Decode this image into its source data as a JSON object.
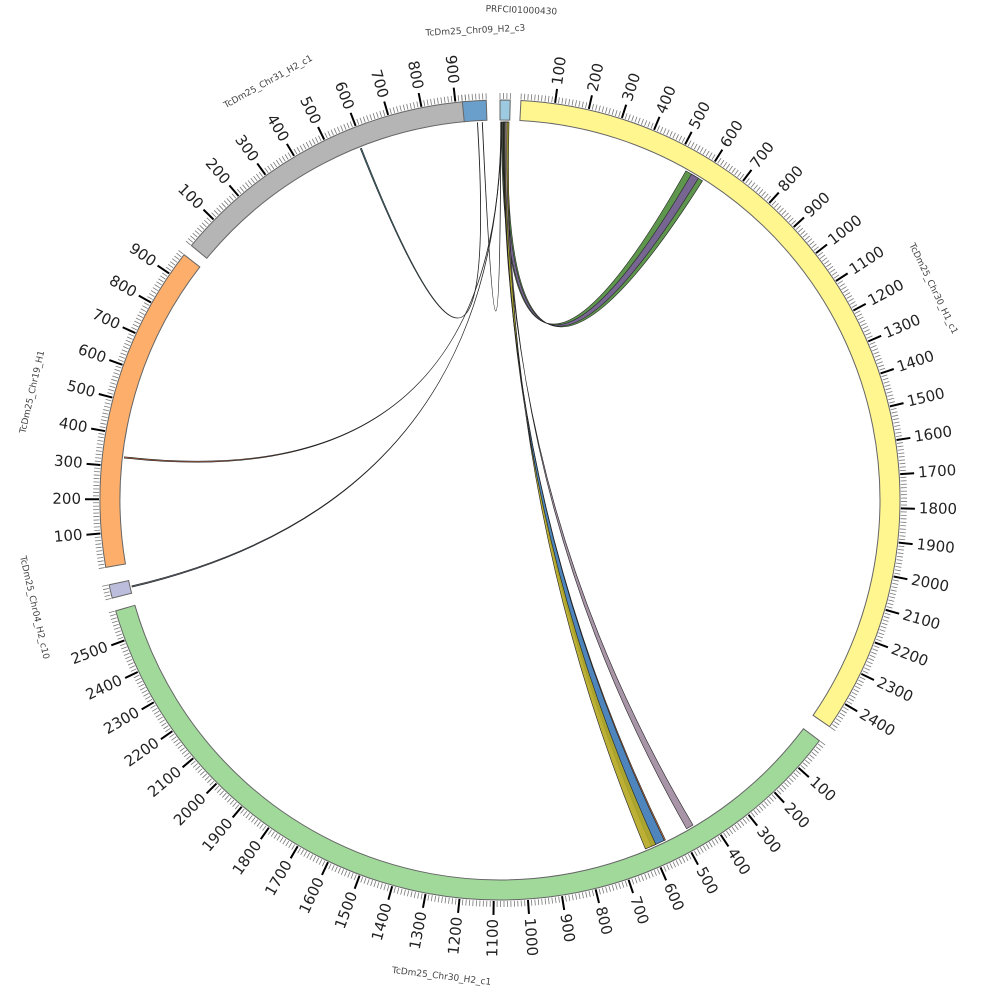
{
  "chromosomes": [
    {
      "name": "PRFCI01000430",
      "length": 30,
      "color": "#9ecae1"
    },
    {
      "name": "TcDm25_Chr30_H1_c1",
      "length": 2480,
      "color": "#fff68f"
    },
    {
      "name": "TcDm25_Chr30_H2_c1",
      "length": 2590,
      "color": "#a1d99b"
    },
    {
      "name": "TcDm25_Chr04_H2_c10",
      "length": 40,
      "color": "#bcbddc"
    },
    {
      "name": "TcDm25_Chr19_H1",
      "length": 970,
      "color": "#fdae6b"
    },
    {
      "name": "TcDm25_Chr31_H2_c1",
      "length": 930,
      "color": "#b5b5b5"
    },
    {
      "name": "TcDm25_Chr09_H2_c3",
      "length": 70,
      "color": "#6a9fcb"
    }
  ],
  "links": [
    {
      "source": "PRFCI01000430",
      "source_range": [
        5,
        25
      ],
      "target": "TcDm25_Chr30_H1_c1",
      "target_range": [
        540,
        600
      ],
      "color": "#4d8b3a"
    },
    {
      "source": "PRFCI01000430",
      "source_range": [
        8,
        20
      ],
      "target": "TcDm25_Chr30_H1_c1",
      "target_range": [
        560,
        585
      ],
      "color": "#7a5f9a"
    },
    {
      "source": "PRFCI01000430",
      "source_range": [
        12,
        26
      ],
      "target": "TcDm25_Chr30_H2_c1",
      "target_range": [
        555,
        600
      ],
      "color": "#3a78b5"
    },
    {
      "source": "PRFCI01000430",
      "source_range": [
        14,
        28
      ],
      "target": "TcDm25_Chr30_H2_c1",
      "target_range": [
        585,
        620
      ],
      "color": "#b5a820"
    },
    {
      "source": "PRFCI01000430",
      "source_range": [
        10,
        12
      ],
      "target": "TcDm25_Chr30_H2_c1",
      "target_range": [
        552,
        556
      ],
      "color": "#d9773a"
    },
    {
      "source": "PRFCI01000430",
      "source_range": [
        16,
        22
      ],
      "target": "TcDm25_Chr30_H2_c1",
      "target_range": [
        455,
        478
      ],
      "color": "#9e8a9e"
    },
    {
      "source": "PRFCI01000430",
      "source_range": [
        4,
        5
      ],
      "target": "TcDm25_Chr19_H1",
      "target_range": [
        328,
        332
      ],
      "color": "#c0603a"
    },
    {
      "source": "PRFCI01000430",
      "source_range": [
        3,
        4
      ],
      "target": "TcDm25_Chr04_H2_c10",
      "target_range": [
        18,
        22
      ],
      "color": "#556677"
    },
    {
      "source": "TcDm25_Chr09_H2_c3",
      "source_range": [
        40,
        41
      ],
      "target": "TcDm25_Chr31_H2_c1",
      "target_range": [
        588,
        592
      ],
      "color": "#2f6f7f"
    },
    {
      "source": "TcDm25_Chr09_H2_c3",
      "source_range": [
        55,
        56
      ],
      "target": "PRFCI01000430",
      "target_range": [
        2,
        3
      ],
      "color": "#7a7020"
    }
  ],
  "tick_interval": 100
}
